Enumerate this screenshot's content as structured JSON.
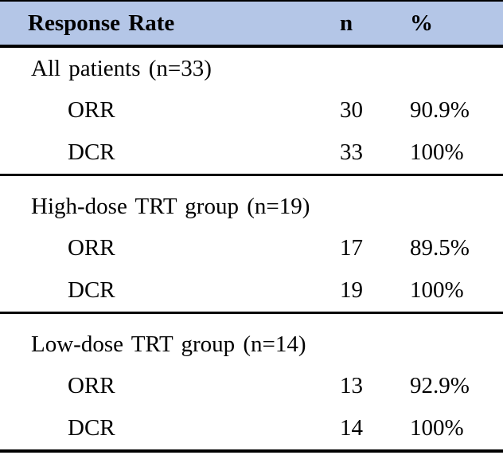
{
  "table": {
    "header": {
      "response_rate": "Response Rate",
      "n": "n",
      "percent": "%"
    },
    "colors": {
      "header_bg": "#b4c6e7",
      "border": "#000000",
      "text": "#000000",
      "page_bg": "#ffffff"
    },
    "sections": [
      {
        "title": "All patients (n=33)",
        "rows": [
          {
            "label": "ORR",
            "n": "30",
            "pct": "90.9%"
          },
          {
            "label": "DCR",
            "n": "33",
            "pct": "100%"
          }
        ]
      },
      {
        "title": "High-dose TRT group (n=19)",
        "rows": [
          {
            "label": "ORR",
            "n": "17",
            "pct": "89.5%"
          },
          {
            "label": "DCR",
            "n": "19",
            "pct": "100%"
          }
        ]
      },
      {
        "title": "Low-dose TRT group (n=14)",
        "rows": [
          {
            "label": "ORR",
            "n": "13",
            "pct": "92.9%"
          },
          {
            "label": "DCR",
            "n": "14",
            "pct": "100%"
          }
        ]
      }
    ]
  }
}
